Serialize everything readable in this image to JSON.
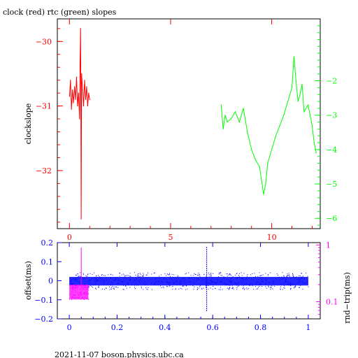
{
  "colors": {
    "red": "#ff0000",
    "green": "#00ff00",
    "blue": "#0000ff",
    "magenta": "#ff00ff",
    "black": "#000000"
  },
  "footer": "2021-11-07  boson.physics.ubc.ca",
  "chart_data": [
    {
      "type": "line",
      "title": "clock (red) rtc (green) slopes",
      "ylabel": "clockslope",
      "xlim": [
        -0.6,
        12.4
      ],
      "ylim": [
        -32.9,
        -29.65
      ],
      "x_ticks": [
        0,
        5,
        10
      ],
      "y_ticks": [
        -30,
        -31,
        -32
      ],
      "y2lim": [
        -6.3,
        -0.2
      ],
      "y2_ticks": [
        -2,
        -3,
        -4,
        -5,
        -6
      ],
      "grid": false,
      "series": [
        {
          "name": "clock",
          "color": "#ff0000",
          "x": [
            0.0,
            0.05,
            0.1,
            0.15,
            0.2,
            0.25,
            0.3,
            0.35,
            0.4,
            0.45,
            0.5,
            0.52,
            0.55,
            0.58,
            0.6,
            0.65,
            0.7,
            0.75,
            0.8,
            0.85,
            0.9,
            0.95,
            1.0
          ],
          "y": [
            -30.85,
            -30.6,
            -31.05,
            -30.75,
            -30.95,
            -30.7,
            -30.9,
            -30.55,
            -31.0,
            -30.8,
            -31.2,
            -30.4,
            -29.8,
            -32.75,
            -30.5,
            -30.75,
            -31.0,
            -30.6,
            -30.9,
            -30.7,
            -31.0,
            -30.8,
            -30.9
          ]
        },
        {
          "name": "rtc",
          "color": "#00ff00",
          "x": [
            7.5,
            7.6,
            7.7,
            7.8,
            8.0,
            8.2,
            8.4,
            8.6,
            8.8,
            9.0,
            9.2,
            9.4,
            9.5,
            9.6,
            9.7,
            9.8,
            10.0,
            10.2,
            10.4,
            10.6,
            10.8,
            11.0,
            11.1,
            11.2,
            11.3,
            11.4,
            11.5,
            11.6,
            11.8,
            12.0,
            12.1,
            12.2
          ],
          "y": [
            -2.7,
            -3.4,
            -3.0,
            -3.2,
            -3.1,
            -2.9,
            -3.2,
            -2.8,
            -3.5,
            -4.0,
            -4.3,
            -4.5,
            -4.9,
            -5.3,
            -5.0,
            -4.4,
            -4.0,
            -3.6,
            -3.3,
            -3.0,
            -2.6,
            -2.2,
            -1.3,
            -2.0,
            -2.6,
            -2.4,
            -2.1,
            -2.9,
            -2.7,
            -3.3,
            -3.8,
            -4.1
          ]
        }
      ]
    },
    {
      "type": "scatter",
      "ylabel": "offset(ms)",
      "y2label": "rnd−trip(ms)",
      "xlim": [
        -0.05,
        1.05
      ],
      "ylim": [
        -0.2,
        0.2
      ],
      "x_ticks": [
        0,
        0.2,
        0.4,
        0.6,
        0.8,
        1
      ],
      "x_tick_labels": [
        "0",
        "0.2",
        "0.4",
        "0.6",
        "0.8",
        "1"
      ],
      "y_ticks": [
        0.2,
        0.1,
        0,
        -0.1,
        -0.2
      ],
      "y_tick_labels": [
        "0.2",
        "0.1",
        "0",
        "−0.1",
        "−0.2"
      ],
      "y2_scale": "log",
      "y2lim": [
        0.05,
        1.1
      ],
      "y2_ticks": [
        1,
        0.1
      ],
      "y2_tick_labels": [
        "1",
        "0.1"
      ],
      "grid": false,
      "series": [
        {
          "name": "offset",
          "color": "#0000ff",
          "x_range": [
            0,
            1
          ],
          "y_band": [
            -0.025,
            0.02
          ],
          "spike": {
            "x": 0.575,
            "y_min": -0.16,
            "y_max": 0.18
          }
        },
        {
          "name": "rnd-trip",
          "color": "#ff00ff",
          "x_range": [
            0,
            0.08
          ],
          "y_band": [
            0.11,
            0.2
          ],
          "spike": {
            "x": 0.05,
            "y_min": 0.2,
            "y_max": 0.9
          }
        }
      ]
    }
  ]
}
